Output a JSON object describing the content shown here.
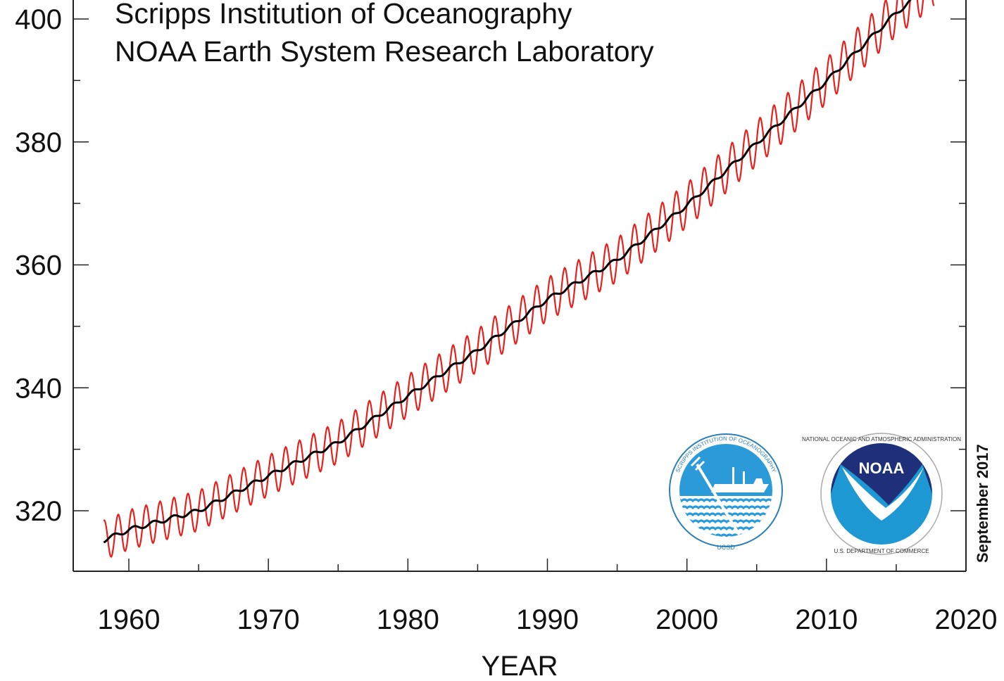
{
  "chart_data": {
    "type": "line",
    "title_lines": [
      "Scripps Institution of Oceanography",
      "NOAA Earth System Research Laboratory"
    ],
    "xlabel": "YEAR",
    "ylabel": "",
    "xlim": [
      1956,
      2020
    ],
    "ylim": [
      310,
      403
    ],
    "x_ticks": [
      1960,
      1970,
      1980,
      1990,
      2000,
      2010,
      2020
    ],
    "y_ticks": [
      320,
      340,
      360,
      380,
      400
    ],
    "date_stamp": "September 2017",
    "series": [
      {
        "color": "#e8201c",
        "style": "monthly-seasonal",
        "seasonal_amplitude": 3.2,
        "x": [
          1958.2,
          1960,
          1965,
          1970,
          1975,
          1980,
          1985,
          1990,
          1995,
          2000,
          2005,
          2010,
          2015,
          2017.7
        ],
        "values": [
          315.2,
          316.9,
          320.0,
          325.7,
          331.1,
          338.7,
          346.1,
          354.4,
          360.8,
          369.7,
          379.8,
          389.9,
          401.0,
          405.8
        ]
      },
      {
        "color": "#000000",
        "style": "trend",
        "x": [
          1958.2,
          1960,
          1965,
          1970,
          1975,
          1980,
          1985,
          1990,
          1995,
          2000,
          2005,
          2010,
          2015,
          2017.7
        ],
        "values": [
          315.2,
          316.9,
          320.0,
          325.7,
          331.1,
          338.7,
          346.1,
          354.4,
          360.8,
          369.7,
          379.8,
          389.9,
          401.0,
          405.8
        ]
      }
    ]
  },
  "logos": {
    "scripps": {
      "ring_text": "SCRIPPS INSTITUTION OF OCEANOGRAPHY",
      "bottom_text": "UCSD"
    },
    "noaa": {
      "ring_text": "NATIONAL OCEANIC AND ATMOSPHERIC ADMINISTRATION",
      "bottom_text": "U.S. DEPARTMENT OF COMMERCE",
      "wordmark": "NOAA"
    }
  }
}
